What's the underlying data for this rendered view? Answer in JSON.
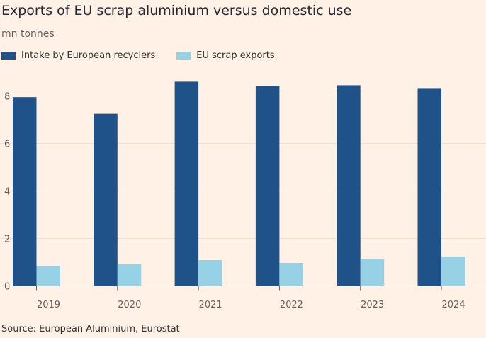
{
  "title": "Exports of EU scrap aluminium versus domestic use",
  "subtitle": "mn tonnes",
  "source": "Source: European Aluminium, Eurostat",
  "chart_data": {
    "type": "bar",
    "categories": [
      "2019",
      "2020",
      "2021",
      "2022",
      "2023",
      "2024"
    ],
    "series": [
      {
        "name": "Intake by European recyclers",
        "color": "#1f5289",
        "values": [
          7.95,
          7.25,
          8.6,
          8.42,
          8.45,
          8.33
        ]
      },
      {
        "name": "EU scrap exports",
        "color": "#96d1e6",
        "values": [
          0.82,
          0.92,
          1.09,
          0.97,
          1.14,
          1.23
        ]
      }
    ],
    "ylim": [
      0,
      8.6
    ],
    "yticks": [
      "0",
      "2",
      "4",
      "6",
      "8"
    ],
    "grid": true,
    "legend": "top-left",
    "xlabel": "",
    "ylabel": ""
  }
}
